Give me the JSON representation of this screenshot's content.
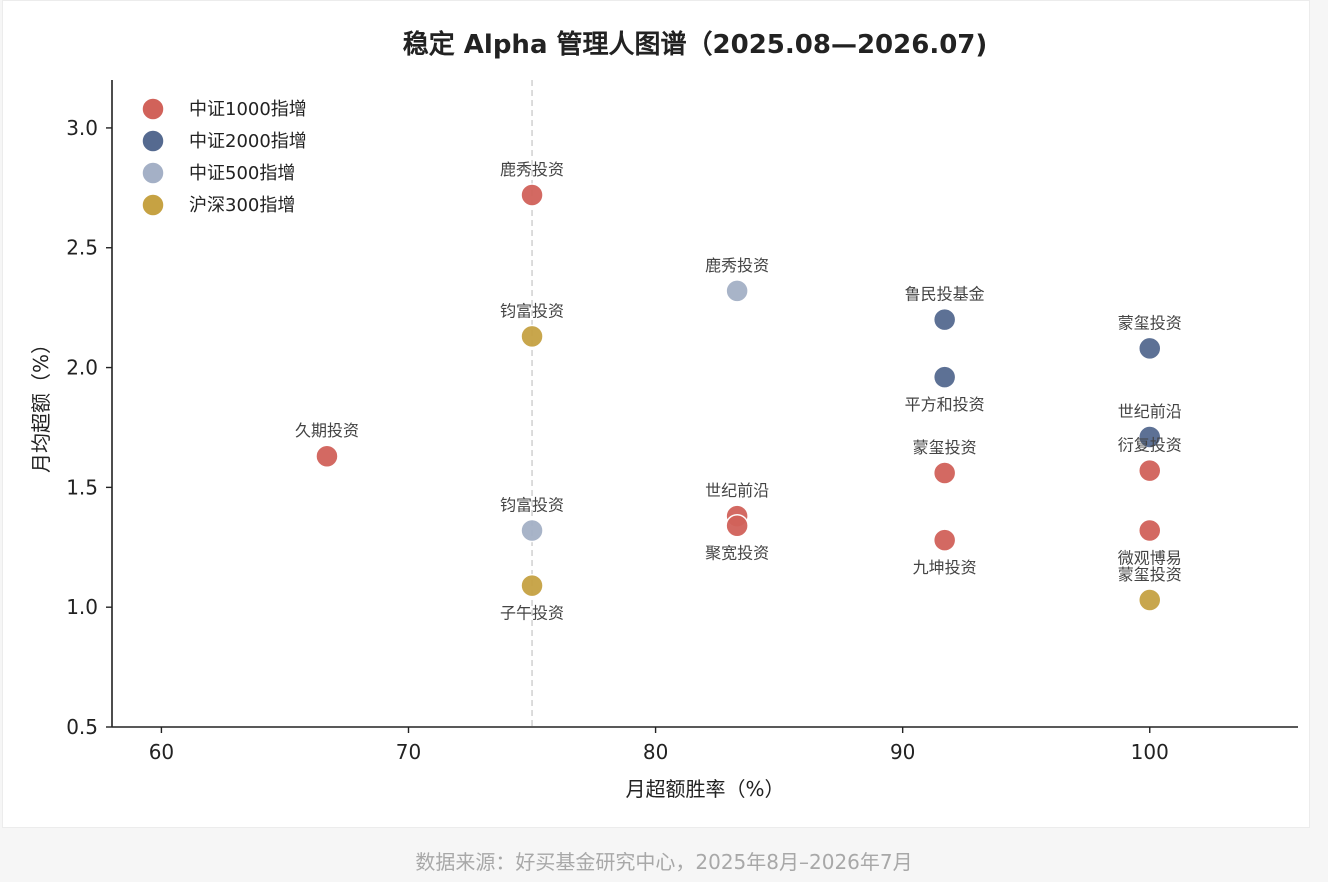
{
  "source_note": "数据来源：好买基金研究中心，2025年8月–2026年7月",
  "chart_data": {
    "type": "scatter",
    "title": "稳定 Alpha 管理人图谱（2025.08—2026.07)",
    "xlabel": "月超额胜率（%）",
    "ylabel": "月均超额（%）",
    "xlim": [
      58,
      106
    ],
    "ylim": [
      0.5,
      3.2
    ],
    "xticks": [
      60,
      70,
      80,
      90,
      100
    ],
    "yticks": [
      0.5,
      1.0,
      1.5,
      2.0,
      2.5,
      3.0
    ],
    "xtick_labels": [
      "60",
      "70",
      "80",
      "90",
      "100"
    ],
    "ytick_labels": [
      "0.5",
      "1.0",
      "1.5",
      "2.0",
      "2.5",
      "3.0"
    ],
    "reference_line_x": 75,
    "grid": false,
    "legend_position": "top-left",
    "series": [
      {
        "name": "中证1000指增",
        "color": "#d1625a",
        "points": [
          {
            "x": 75.0,
            "y": 2.72,
            "label": "鹿秀投资",
            "label_pos": "above"
          },
          {
            "x": 66.7,
            "y": 1.63,
            "label": "久期投资",
            "label_pos": "above"
          },
          {
            "x": 83.3,
            "y": 1.38,
            "label": "世纪前沿",
            "label_pos": "above"
          },
          {
            "x": 83.3,
            "y": 1.34,
            "label": "聚宽投资",
            "label_pos": "below"
          },
          {
            "x": 91.7,
            "y": 1.56,
            "label": "蒙玺投资",
            "label_pos": "above"
          },
          {
            "x": 91.7,
            "y": 1.28,
            "label": "九坤投资",
            "label_pos": "below"
          },
          {
            "x": 100.0,
            "y": 1.57,
            "label": "衍复投资",
            "label_pos": "above"
          },
          {
            "x": 100.0,
            "y": 1.32,
            "label": "微观博易",
            "label_pos": "below"
          }
        ]
      },
      {
        "name": "中证2000指增",
        "color": "#556a90",
        "points": [
          {
            "x": 91.7,
            "y": 2.2,
            "label": "鲁民投基金",
            "label_pos": "above"
          },
          {
            "x": 91.7,
            "y": 1.96,
            "label": "平方和投资",
            "label_pos": "below"
          },
          {
            "x": 100.0,
            "y": 2.08,
            "label": "蒙玺投资",
            "label_pos": "above"
          },
          {
            "x": 100.0,
            "y": 1.71,
            "label": "世纪前沿",
            "label_pos": "above"
          }
        ]
      },
      {
        "name": "中证500指增",
        "color": "#a4b0c6",
        "points": [
          {
            "x": 83.3,
            "y": 2.32,
            "label": "鹿秀投资",
            "label_pos": "above"
          },
          {
            "x": 75.0,
            "y": 1.32,
            "label": "钧富投资",
            "label_pos": "above"
          }
        ]
      },
      {
        "name": "沪深300指增",
        "color": "#c6a243",
        "points": [
          {
            "x": 75.0,
            "y": 2.13,
            "label": "钧富投资",
            "label_pos": "above"
          },
          {
            "x": 75.0,
            "y": 1.09,
            "label": "子午投资",
            "label_pos": "below"
          },
          {
            "x": 100.0,
            "y": 1.03,
            "label": "蒙玺投资",
            "label_pos": "above"
          }
        ]
      }
    ]
  }
}
